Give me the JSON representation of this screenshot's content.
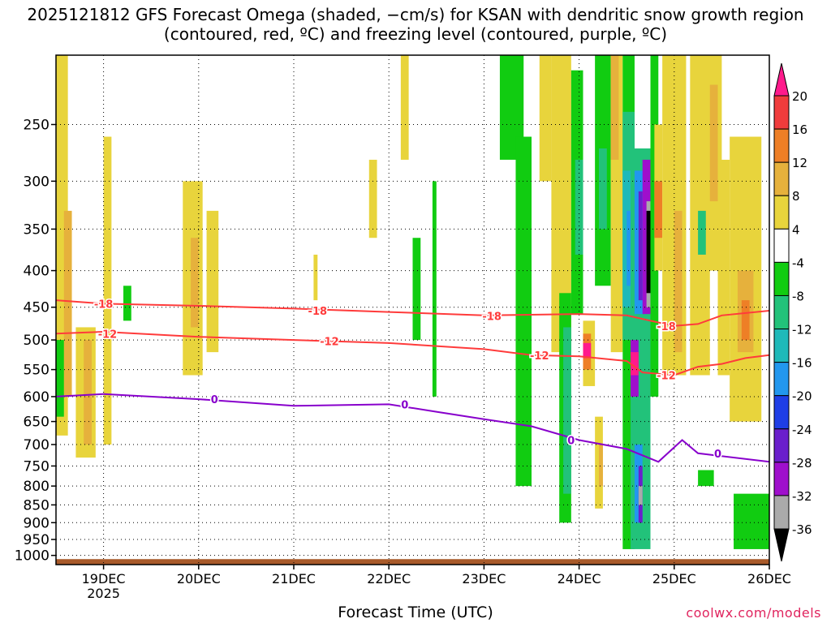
{
  "chart_data": {
    "type": "heatmap",
    "title": "2025121812 GFS Forecast Omega (shaded, −cm/s) for KSAN with dendritic snow growth region (contoured, red, ºC) and freezing level (contoured, purple, ºC)",
    "xlabel": "Forecast Time (UTC)",
    "ylabel": "",
    "credit": "coolwx.com/models",
    "x_range_hours": [
      -12,
      168
    ],
    "x_ticks": [
      {
        "hour": 0,
        "label": "19DEC",
        "sub": "2025"
      },
      {
        "hour": 24,
        "label": "20DEC",
        "sub": ""
      },
      {
        "hour": 48,
        "label": "21DEC",
        "sub": ""
      },
      {
        "hour": 72,
        "label": "22DEC",
        "sub": ""
      },
      {
        "hour": 96,
        "label": "23DEC",
        "sub": ""
      },
      {
        "hour": 120,
        "label": "24DEC",
        "sub": ""
      },
      {
        "hour": 144,
        "label": "25DEC",
        "sub": ""
      },
      {
        "hour": 168,
        "label": "26DEC",
        "sub": ""
      }
    ],
    "y_scale": "log-pressure (hPa), inverted",
    "y_range_hpa": [
      1030,
      200
    ],
    "y_ticks": [
      250,
      300,
      350,
      400,
      450,
      500,
      550,
      600,
      650,
      700,
      750,
      800,
      850,
      900,
      950,
      1000
    ],
    "grid": true,
    "colorbar": {
      "levels": [
        20,
        16,
        12,
        8,
        4,
        -4,
        -8,
        -12,
        -16,
        -20,
        -24,
        -28,
        -32,
        -36
      ],
      "colors": [
        "#ff1a8c",
        "#f03c3c",
        "#ee7f26",
        "#e6b13c",
        "#e8d43c",
        "#ffffff",
        "#11cc11",
        "#22c27a",
        "#1fb9b9",
        "#2297ee",
        "#1f3ee6",
        "#6a1fcc",
        "#9f0fcc",
        "#aaaaaa",
        "#000000"
      ]
    },
    "shaded_regions": [
      {
        "x": [
          -12,
          -9
        ],
        "p": [
          200,
          680
        ],
        "v": 5
      },
      {
        "x": [
          -10,
          -8
        ],
        "p": [
          330,
          600
        ],
        "v": 9
      },
      {
        "x": [
          -7,
          -2
        ],
        "p": [
          480,
          730
        ],
        "v": 5
      },
      {
        "x": [
          -5,
          -3
        ],
        "p": [
          500,
          700
        ],
        "v": 9
      },
      {
        "x": [
          -12,
          -10
        ],
        "p": [
          500,
          640
        ],
        "v": -6
      },
      {
        "x": [
          0,
          2
        ],
        "p": [
          260,
          700
        ],
        "v": 5
      },
      {
        "x": [
          5,
          7
        ],
        "p": [
          420,
          470
        ],
        "v": -6
      },
      {
        "x": [
          20,
          25
        ],
        "p": [
          300,
          560
        ],
        "v": 5
      },
      {
        "x": [
          22,
          24
        ],
        "p": [
          360,
          480
        ],
        "v": 9
      },
      {
        "x": [
          26,
          29
        ],
        "p": [
          330,
          520
        ],
        "v": 5
      },
      {
        "x": [
          53,
          54
        ],
        "p": [
          380,
          440
        ],
        "v": 5
      },
      {
        "x": [
          67,
          69
        ],
        "p": [
          280,
          360
        ],
        "v": 5
      },
      {
        "x": [
          75,
          77
        ],
        "p": [
          200,
          280
        ],
        "v": 5
      },
      {
        "x": [
          78,
          80
        ],
        "p": [
          360,
          500
        ],
        "v": -6
      },
      {
        "x": [
          83,
          84
        ],
        "p": [
          300,
          600
        ],
        "v": -6
      },
      {
        "x": [
          100,
          106
        ],
        "p": [
          200,
          280
        ],
        "v": -6
      },
      {
        "x": [
          104,
          108
        ],
        "p": [
          260,
          800
        ],
        "v": -6
      },
      {
        "x": [
          110,
          113
        ],
        "p": [
          200,
          300
        ],
        "v": 5
      },
      {
        "x": [
          113,
          118
        ],
        "p": [
          200,
          520
        ],
        "v": 5
      },
      {
        "x": [
          115,
          118
        ],
        "p": [
          430,
          900
        ],
        "v": -6
      },
      {
        "x": [
          116,
          118
        ],
        "p": [
          480,
          820
        ],
        "v": -10
      },
      {
        "x": [
          118,
          121
        ],
        "p": [
          210,
          460
        ],
        "v": -6
      },
      {
        "x": [
          119,
          121
        ],
        "p": [
          280,
          380
        ],
        "v": -10
      },
      {
        "x": [
          121,
          124
        ],
        "p": [
          470,
          580
        ],
        "v": 5
      },
      {
        "x": [
          121,
          123
        ],
        "p": [
          490,
          550
        ],
        "v": 14
      },
      {
        "x": [
          121,
          123
        ],
        "p": [
          505,
          530
        ],
        "v": 20
      },
      {
        "x": [
          124,
          126
        ],
        "p": [
          640,
          860
        ],
        "v": 5
      },
      {
        "x": [
          125,
          126
        ],
        "p": [
          700,
          800
        ],
        "v": 10
      },
      {
        "x": [
          124,
          128
        ],
        "p": [
          200,
          420
        ],
        "v": -6
      },
      {
        "x": [
          125,
          127
        ],
        "p": [
          270,
          350
        ],
        "v": -10
      },
      {
        "x": [
          128,
          131
        ],
        "p": [
          200,
          520
        ],
        "v": 5
      },
      {
        "x": [
          128,
          130
        ],
        "p": [
          200,
          280
        ],
        "v": 10
      },
      {
        "x": [
          131,
          134
        ],
        "p": [
          200,
          980
        ],
        "v": -6
      },
      {
        "x": [
          131,
          134
        ],
        "p": [
          240,
          500
        ],
        "v": -10
      },
      {
        "x": [
          131,
          133
        ],
        "p": [
          290,
          450
        ],
        "v": -14
      },
      {
        "x": [
          132,
          133
        ],
        "p": [
          330,
          420
        ],
        "v": -18
      },
      {
        "x": [
          133,
          138
        ],
        "p": [
          270,
          980
        ],
        "v": -10
      },
      {
        "x": [
          134,
          137
        ],
        "p": [
          290,
          460
        ],
        "v": -18
      },
      {
        "x": [
          135,
          136
        ],
        "p": [
          310,
          440
        ],
        "v": -26
      },
      {
        "x": [
          134,
          136
        ],
        "p": [
          700,
          900
        ],
        "v": -18
      },
      {
        "x": [
          135,
          136
        ],
        "p": [
          750,
          900
        ],
        "v": -26
      },
      {
        "x": [
          135,
          136
        ],
        "p": [
          800,
          850
        ],
        "v": -33
      },
      {
        "x": [
          133,
          135
        ],
        "p": [
          500,
          600
        ],
        "v": -30
      },
      {
        "x": [
          133,
          135
        ],
        "p": [
          520,
          560
        ],
        "v": 20
      },
      {
        "x": [
          136,
          139
        ],
        "p": [
          280,
          460
        ],
        "v": -30
      },
      {
        "x": [
          137,
          139
        ],
        "p": [
          320,
          450
        ],
        "v": -33
      },
      {
        "x": [
          137,
          139
        ],
        "p": [
          330,
          430
        ],
        "v": -38
      },
      {
        "x": [
          138,
          140
        ],
        "p": [
          200,
          600
        ],
        "v": -6
      },
      {
        "x": [
          139,
          141
        ],
        "p": [
          250,
          400
        ],
        "v": 5
      },
      {
        "x": [
          139,
          141
        ],
        "p": [
          300,
          360
        ],
        "v": 14
      },
      {
        "x": [
          141,
          147
        ],
        "p": [
          200,
          560
        ],
        "v": 5
      },
      {
        "x": [
          144,
          146
        ],
        "p": [
          330,
          520
        ],
        "v": 9
      },
      {
        "x": [
          148,
          153
        ],
        "p": [
          200,
          560
        ],
        "v": 5
      },
      {
        "x": [
          150,
          152
        ],
        "p": [
          330,
          380
        ],
        "v": -10
      },
      {
        "x": [
          152,
          156
        ],
        "p": [
          200,
          400
        ],
        "v": 5
      },
      {
        "x": [
          153,
          155
        ],
        "p": [
          220,
          320
        ],
        "v": 9
      },
      {
        "x": [
          155,
          158
        ],
        "p": [
          280,
          560
        ],
        "v": 5
      },
      {
        "x": [
          158,
          166
        ],
        "p": [
          260,
          650
        ],
        "v": 5
      },
      {
        "x": [
          160,
          164
        ],
        "p": [
          400,
          520
        ],
        "v": 9
      },
      {
        "x": [
          161,
          163
        ],
        "p": [
          440,
          500
        ],
        "v": 12
      },
      {
        "x": [
          150,
          154
        ],
        "p": [
          760,
          800
        ],
        "v": -6
      },
      {
        "x": [
          159,
          168
        ],
        "p": [
          820,
          980
        ],
        "v": -6
      }
    ],
    "contours_dendritic_red": [
      {
        "label": "-18",
        "points": [
          [
            -12,
            440
          ],
          [
            0,
            445
          ],
          [
            24,
            448
          ],
          [
            48,
            452
          ],
          [
            72,
            457
          ],
          [
            96,
            462
          ],
          [
            120,
            460
          ],
          [
            132,
            462
          ],
          [
            138,
            470
          ],
          [
            144,
            478
          ],
          [
            150,
            475
          ],
          [
            156,
            462
          ],
          [
            168,
            455
          ]
        ]
      },
      {
        "label": "-12",
        "points": [
          [
            -12,
            490
          ],
          [
            0,
            487
          ],
          [
            24,
            495
          ],
          [
            48,
            500
          ],
          [
            72,
            505
          ],
          [
            96,
            515
          ],
          [
            108,
            525
          ],
          [
            120,
            527
          ],
          [
            132,
            535
          ],
          [
            136,
            555
          ],
          [
            144,
            560
          ],
          [
            150,
            545
          ],
          [
            156,
            540
          ],
          [
            162,
            530
          ],
          [
            168,
            525
          ]
        ]
      }
    ],
    "contour_freezing_purple": {
      "label": "0",
      "points": [
        [
          -12,
          600
        ],
        [
          0,
          595
        ],
        [
          24,
          605
        ],
        [
          48,
          618
        ],
        [
          72,
          615
        ],
        [
          84,
          630
        ],
        [
          96,
          645
        ],
        [
          108,
          660
        ],
        [
          120,
          690
        ],
        [
          132,
          710
        ],
        [
          140,
          740
        ],
        [
          146,
          690
        ],
        [
          150,
          720
        ],
        [
          168,
          740
        ]
      ]
    },
    "contour_labels": [
      {
        "text": "-18",
        "x": 0,
        "p": 445,
        "color": "#ff3b3b"
      },
      {
        "text": "-18",
        "x": 54,
        "p": 455,
        "color": "#ff3b3b"
      },
      {
        "text": "-18",
        "x": 98,
        "p": 463,
        "color": "#ff3b3b"
      },
      {
        "text": "-18",
        "x": 142,
        "p": 478,
        "color": "#ff3b3b"
      },
      {
        "text": "-12",
        "x": 1,
        "p": 490,
        "color": "#ff3b3b"
      },
      {
        "text": "-12",
        "x": 57,
        "p": 502,
        "color": "#ff3b3b"
      },
      {
        "text": "-12",
        "x": 110,
        "p": 525,
        "color": "#ff3b3b"
      },
      {
        "text": "-12",
        "x": 142,
        "p": 560,
        "color": "#ff3b3b"
      },
      {
        "text": "0",
        "x": 28,
        "p": 605,
        "color": "#8800cc"
      },
      {
        "text": "0",
        "x": 76,
        "p": 615,
        "color": "#8800cc"
      },
      {
        "text": "0",
        "x": 118,
        "p": 690,
        "color": "#8800cc"
      },
      {
        "text": "0",
        "x": 155,
        "p": 720,
        "color": "#8800cc"
      }
    ],
    "surface": {
      "color": "#a85a2a",
      "p_top": 1012
    }
  }
}
